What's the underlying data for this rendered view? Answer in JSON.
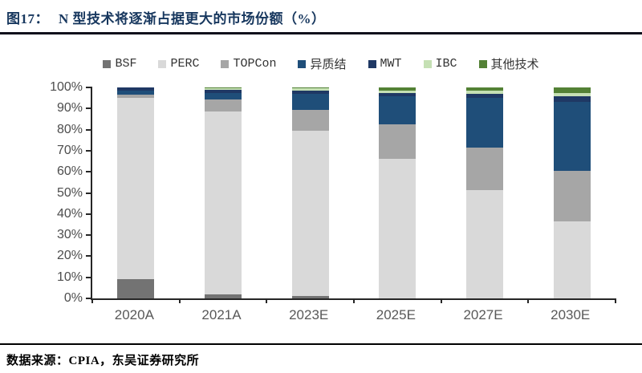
{
  "page": {
    "figure_label": "图17：",
    "title": "N 型技术将逐渐占据更大的市场份额（%）",
    "source_note": "数据来源：CPIA，东吴证券研究所"
  },
  "colors": {
    "title_navy": "#17375e",
    "axis": "#262626",
    "tick_label_gray": "#4d4d4d",
    "title_rule": "#10101c",
    "footer_rule": "#000000"
  },
  "chart_data": {
    "type": "bar",
    "stacked": true,
    "title": "N 型技术将逐渐占据更大的市场份额（%）",
    "categories": [
      "2020A",
      "2021A",
      "2023E",
      "2025E",
      "2027E",
      "2030E"
    ],
    "series": [
      {
        "name": "BSF",
        "color": "#737373",
        "values": [
          9,
          2,
          1,
          0,
          0,
          0
        ]
      },
      {
        "name": "PERC",
        "color": "#d9d9d9",
        "values": [
          86,
          86.5,
          78.5,
          66,
          51.5,
          36.5
        ]
      },
      {
        "name": "TOPCon",
        "color": "#a6a6a6",
        "values": [
          1.5,
          6,
          10,
          16.5,
          20,
          24
        ]
      },
      {
        "name": "异质结",
        "color": "#1f4e79",
        "values": [
          2,
          3,
          7.5,
          13.5,
          23.5,
          32.5
        ]
      },
      {
        "name": "MWT",
        "color": "#1f3864",
        "values": [
          1.5,
          1.5,
          1.5,
          1.5,
          2,
          3
        ]
      },
      {
        "name": "IBC",
        "color": "#c5e0b4",
        "values": [
          0,
          0.5,
          1,
          1,
          1.5,
          1.5
        ]
      },
      {
        "name": "其他技术",
        "color": "#538135",
        "values": [
          0,
          0.5,
          0.5,
          1.5,
          1.5,
          2.5
        ]
      }
    ],
    "xlabel": "",
    "ylabel": "",
    "ylim": [
      0,
      100
    ],
    "yticks": [
      "0%",
      "10%",
      "20%",
      "30%",
      "40%",
      "50%",
      "60%",
      "70%",
      "80%",
      "90%",
      "100%"
    ],
    "legend_position": "top",
    "grid": false
  }
}
